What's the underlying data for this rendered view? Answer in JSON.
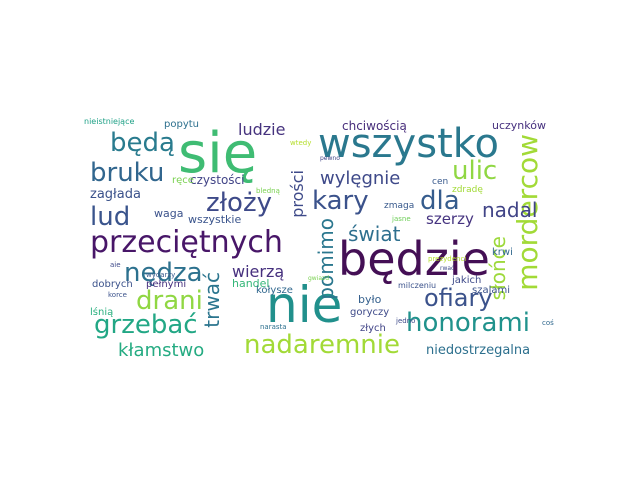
{
  "words": [
    {
      "text": "się",
      "color": "#3fbc73"
    },
    {
      "text": "będzie",
      "color": "#440f55"
    },
    {
      "text": "nie",
      "color": "#21908c"
    },
    {
      "text": "wszystko",
      "color": "#2a788e"
    },
    {
      "text": "mordercow",
      "color": "#a2da37"
    },
    {
      "text": "przeciętnych",
      "color": "#481668"
    },
    {
      "text": "honorami",
      "color": "#20928c"
    },
    {
      "text": "nadaremnie",
      "color": "#a2da37"
    },
    {
      "text": "grzebać",
      "color": "#22a785"
    },
    {
      "text": "ofiary",
      "color": "#3b528b"
    },
    {
      "text": "złoży",
      "color": "#3e4a89"
    },
    {
      "text": "bruku",
      "color": "#31668e"
    },
    {
      "text": "drani",
      "color": "#90d743"
    },
    {
      "text": "nędza",
      "color": "#2c718e"
    },
    {
      "text": "kary",
      "color": "#3b528b"
    },
    {
      "text": "ulic",
      "color": "#90d743"
    },
    {
      "text": "dla",
      "color": "#365c8d"
    },
    {
      "text": "lud",
      "color": "#3a548c"
    },
    {
      "text": "będą",
      "color": "#297b8e"
    },
    {
      "text": "wylęgnie",
      "color": "#3e4989"
    },
    {
      "text": "świat",
      "color": "#2e6f8e"
    },
    {
      "text": "kłamstwo",
      "color": "#25ab82"
    },
    {
      "text": "trwać",
      "color": "#2b758e"
    },
    {
      "text": "pomimo",
      "color": "#2a778e"
    },
    {
      "text": "słońce",
      "color": "#9dd93b"
    },
    {
      "text": "nadal",
      "color": "#414487"
    },
    {
      "text": "ludzie",
      "color": "#46337e"
    },
    {
      "text": "wierzą",
      "color": "#46307e"
    },
    {
      "text": "prości",
      "color": "#3e4a89"
    },
    {
      "text": "szerzy",
      "color": "#463480"
    },
    {
      "text": "niedostrzegalna",
      "color": "#2d708e"
    },
    {
      "text": "zagłada",
      "color": "#3b528b"
    },
    {
      "text": "czystości",
      "color": "#414487"
    },
    {
      "text": "chciwością",
      "color": "#472d7b"
    },
    {
      "text": "uczynków",
      "color": "#46307e"
    },
    {
      "text": "popytu",
      "color": "#2d708e"
    },
    {
      "text": "wszystkie",
      "color": "#3a548c"
    },
    {
      "text": "waga",
      "color": "#3b528b"
    },
    {
      "text": "ręce",
      "color": "#7ad151"
    },
    {
      "text": "handel",
      "color": "#35b779"
    },
    {
      "text": "kołysze",
      "color": "#31688e"
    },
    {
      "text": "dobrych",
      "color": "#3b528b"
    },
    {
      "text": "pełnymi",
      "color": "#46307e"
    },
    {
      "text": "lśnią",
      "color": "#2ab07f"
    },
    {
      "text": "było",
      "color": "#35608d"
    },
    {
      "text": "goryczy",
      "color": "#3e4a89"
    },
    {
      "text": "złych",
      "color": "#414487"
    },
    {
      "text": "jakich",
      "color": "#3e4a89"
    },
    {
      "text": "krwi",
      "color": "#31688e"
    },
    {
      "text": "szalami",
      "color": "#3b528b"
    },
    {
      "text": "zmaga",
      "color": "#38598c"
    },
    {
      "text": "cen",
      "color": "#38598c"
    },
    {
      "text": "zdradę",
      "color": "#a2da37"
    },
    {
      "text": "obiema",
      "color": "#3b528b"
    },
    {
      "text": "nieistniejące",
      "color": "#1fa187"
    },
    {
      "text": "wtedy",
      "color": "#b5de2b"
    },
    {
      "text": "pewno",
      "color": "#404387"
    },
    {
      "text": "bledną",
      "color": "#7ad151"
    },
    {
      "text": "jasne",
      "color": "#6ece58"
    },
    {
      "text": "prezydenci",
      "color": "#b5de2b"
    },
    {
      "text": "rwać",
      "color": "#3e4a89"
    },
    {
      "text": "wydarzy",
      "color": "#38598c"
    },
    {
      "text": "korce",
      "color": "#3b528b"
    },
    {
      "text": "aie",
      "color": "#3e4a89"
    },
    {
      "text": "gwiazd",
      "color": "#7ad151"
    },
    {
      "text": "milczeniu",
      "color": "#3b528b"
    },
    {
      "text": "narasta",
      "color": "#2d708e"
    },
    {
      "text": "jedno",
      "color": "#3e4a89"
    },
    {
      "text": "coś",
      "color": "#31688e"
    }
  ]
}
